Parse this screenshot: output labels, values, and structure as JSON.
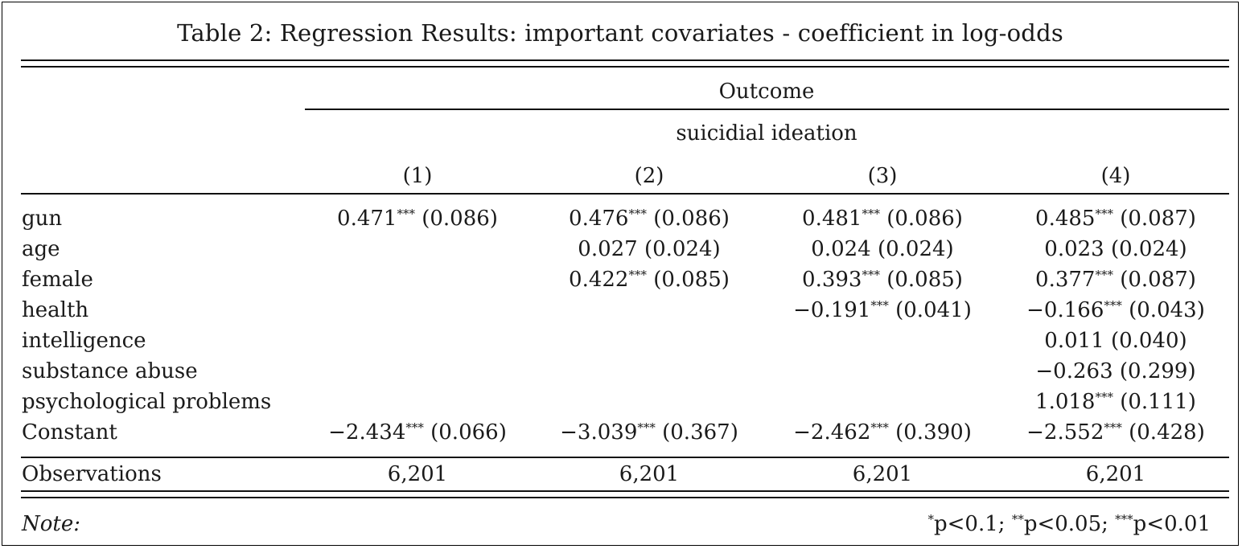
{
  "caption": "Table 2: Regression Results: important covariates - coefficient in log-odds",
  "header": {
    "outcome_label": "Outcome",
    "dependent_variable": "suicidial ideation",
    "columns": [
      "(1)",
      "(2)",
      "(3)",
      "(4)"
    ]
  },
  "rows": [
    {
      "label": "gun",
      "cells": [
        {
          "coef": "0.471",
          "stars": "***",
          "se": "(0.086)"
        },
        {
          "coef": "0.476",
          "stars": "***",
          "se": "(0.086)"
        },
        {
          "coef": "0.481",
          "stars": "***",
          "se": "(0.086)"
        },
        {
          "coef": "0.485",
          "stars": "***",
          "se": "(0.087)"
        }
      ]
    },
    {
      "label": "age",
      "cells": [
        null,
        {
          "coef": "0.027",
          "stars": "",
          "se": "(0.024)"
        },
        {
          "coef": "0.024",
          "stars": "",
          "se": "(0.024)"
        },
        {
          "coef": "0.023",
          "stars": "",
          "se": "(0.024)"
        }
      ]
    },
    {
      "label": "female",
      "cells": [
        null,
        {
          "coef": "0.422",
          "stars": "***",
          "se": "(0.085)"
        },
        {
          "coef": "0.393",
          "stars": "***",
          "se": "(0.085)"
        },
        {
          "coef": "0.377",
          "stars": "***",
          "se": "(0.087)"
        }
      ]
    },
    {
      "label": "health",
      "cells": [
        null,
        null,
        {
          "coef": "−0.191",
          "stars": "***",
          "se": "(0.041)"
        },
        {
          "coef": "−0.166",
          "stars": "***",
          "se": "(0.043)"
        }
      ]
    },
    {
      "label": "intelligence",
      "cells": [
        null,
        null,
        null,
        {
          "coef": "0.011",
          "stars": "",
          "se": "(0.040)"
        }
      ]
    },
    {
      "label": "substance abuse",
      "cells": [
        null,
        null,
        null,
        {
          "coef": "−0.263",
          "stars": "",
          "se": "(0.299)"
        }
      ]
    },
    {
      "label": "psychological problems",
      "cells": [
        null,
        null,
        null,
        {
          "coef": "1.018",
          "stars": "***",
          "se": "(0.111)"
        }
      ]
    },
    {
      "label": "Constant",
      "cells": [
        {
          "coef": "−2.434",
          "stars": "***",
          "se": "(0.066)"
        },
        {
          "coef": "−3.039",
          "stars": "***",
          "se": "(0.367)"
        },
        {
          "coef": "−2.462",
          "stars": "***",
          "se": "(0.390)"
        },
        {
          "coef": "−2.552",
          "stars": "***",
          "se": "(0.428)"
        }
      ]
    }
  ],
  "observations": {
    "label": "Observations",
    "values": [
      "6,201",
      "6,201",
      "6,201",
      "6,201"
    ]
  },
  "note": {
    "label": "Note:",
    "significance": [
      {
        "stars": "*",
        "text": "p<0.1;"
      },
      {
        "stars": "**",
        "text": "p<0.05;"
      },
      {
        "stars": "***",
        "text": "p<0.01"
      }
    ]
  }
}
